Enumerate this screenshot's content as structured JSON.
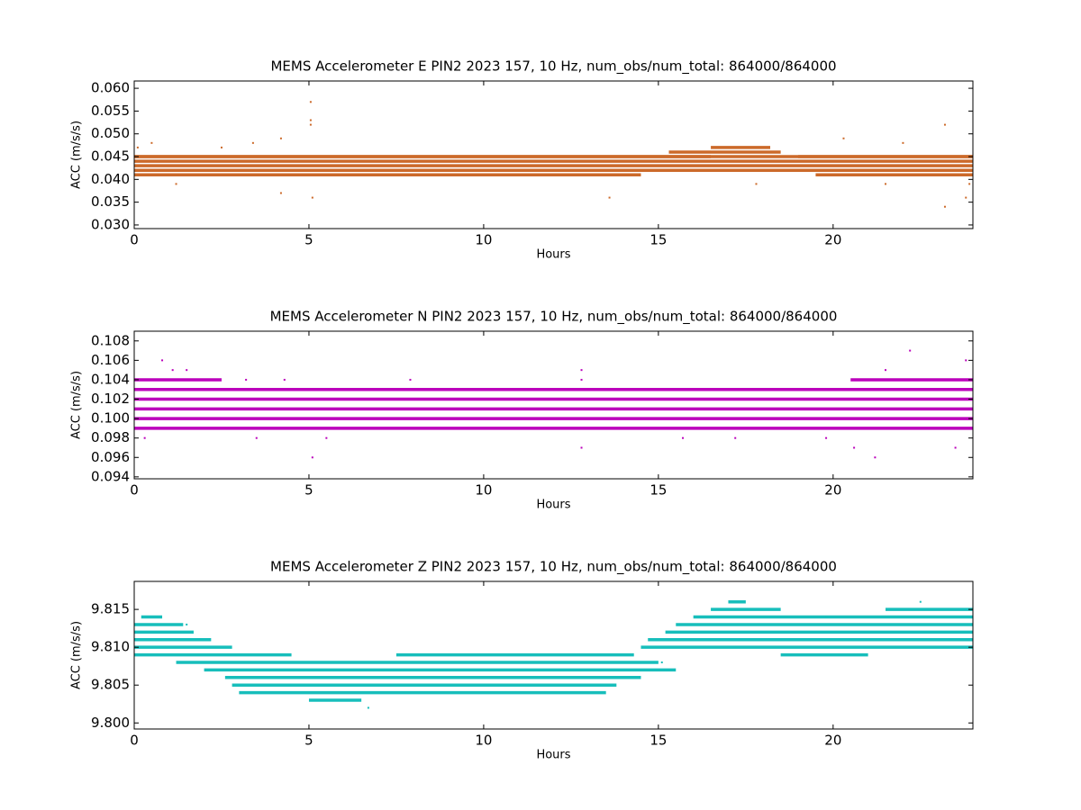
{
  "chart_data": [
    {
      "type": "scatter",
      "title": "MEMS Accelerometer E PIN2 2023 157, 10 Hz, num_obs/num_total: 864000/864000",
      "xlabel": "Hours",
      "ylabel": "ACC (m/s/s)",
      "xlim": [
        0,
        24
      ],
      "ylim": [
        0.0292,
        0.0616
      ],
      "xticks": [
        0,
        5,
        10,
        15,
        20
      ],
      "yticks": [
        {
          "value": 0.03,
          "label": "0.030"
        },
        0.035,
        {
          "value": 0.04,
          "label": "0.040"
        },
        0.045,
        {
          "value": 0.05,
          "label": "0.050"
        },
        0.055,
        {
          "value": 0.06,
          "label": "0.060"
        }
      ],
      "series": [
        {
          "color": "#cc6a2a",
          "x": [
            0,
            0,
            0,
            0,
            0,
            19,
            15.3,
            16.5,
            0,
            19.5
          ],
          "x_end": [
            24,
            24,
            24,
            24,
            16.5,
            24,
            18.5,
            18.2,
            14.5,
            24
          ],
          "values": [
            0.042,
            0.043,
            0.044,
            0.045,
            0.045,
            0.045,
            0.046,
            0.047,
            0.041,
            0.041
          ]
        },
        {
          "color": "#cc6a2a",
          "x": [
            5.05,
            5.05,
            5.05,
            4.2,
            4.2,
            5.1,
            13.6,
            23.2,
            23.2,
            22,
            3.4,
            17.8,
            0.1,
            0.5,
            2.5,
            20.3,
            21.5,
            23.8,
            1.2,
            23.9
          ],
          "values": [
            0.057,
            0.053,
            0.052,
            0.049,
            0.037,
            0.036,
            0.036,
            0.052,
            0.034,
            0.048,
            0.048,
            0.039,
            0.047,
            0.048,
            0.047,
            0.049,
            0.039,
            0.036,
            0.039,
            0.039
          ]
        }
      ]
    },
    {
      "type": "scatter",
      "title": "MEMS Accelerometer N PIN2 2023 157, 10 Hz, num_obs/num_total: 864000/864000",
      "xlabel": "Hours",
      "ylabel": "ACC (m/s/s)",
      "xlim": [
        0,
        24
      ],
      "ylim": [
        0.0938,
        0.109
      ],
      "xticks": [
        0,
        5,
        10,
        15,
        20
      ],
      "yticks": [
        0.094,
        0.096,
        0.098,
        {
          "value": 0.1,
          "label": "0.100"
        },
        0.102,
        0.104,
        0.106,
        0.108
      ],
      "series": [
        {
          "color": "#bb00bb",
          "x": [
            0,
            0,
            0,
            0,
            0,
            0,
            20.5,
            0,
            18
          ],
          "x_end": [
            24,
            24,
            24,
            24,
            24,
            2.5,
            24,
            2.5,
            24
          ],
          "values": [
            0.099,
            0.1,
            0.101,
            0.102,
            0.103,
            0.104,
            0.104,
            0.103,
            0.103
          ]
        },
        {
          "color": "#bb00bb",
          "x": [
            0.8,
            1.1,
            22.2,
            23.8,
            5.1,
            12.8,
            12.8,
            21.2,
            20.6,
            0.3,
            3.5,
            5.5,
            3.2,
            4.3,
            7.9,
            15.7,
            17.2,
            19.8,
            23.5,
            21.5,
            1.5,
            12.8
          ],
          "values": [
            0.106,
            0.105,
            0.107,
            0.106,
            0.096,
            0.105,
            0.097,
            0.096,
            0.097,
            0.098,
            0.098,
            0.098,
            0.104,
            0.104,
            0.104,
            0.098,
            0.098,
            0.098,
            0.097,
            0.105,
            0.105,
            0.104
          ]
        }
      ]
    },
    {
      "type": "scatter",
      "title": "MEMS Accelerometer Z PIN2 2023 157, 10 Hz, num_obs/num_total: 864000/864000",
      "xlabel": "Hours",
      "ylabel": "ACC (m/s/s)",
      "xlim": [
        0,
        24
      ],
      "ylim": [
        9.7992,
        9.8187
      ],
      "xticks": [
        0,
        5,
        10,
        15,
        20
      ],
      "yticks": [
        {
          "value": 9.8,
          "label": "9.800"
        },
        9.805,
        {
          "value": 9.81,
          "label": "9.810"
        },
        9.815
      ],
      "series": [
        {
          "color": "#17bebb",
          "x": [
            0.2,
            0,
            0,
            0,
            0,
            0,
            7.5,
            1.2,
            2,
            2.6,
            2.8,
            3,
            5,
            14.5,
            14.7,
            15.2,
            15.5,
            16,
            16.5,
            21.5,
            17,
            18.5
          ],
          "x_end": [
            0.8,
            1.4,
            1.7,
            2.2,
            2.8,
            4.5,
            14.3,
            15,
            15.5,
            14.5,
            13.8,
            13.5,
            6.5,
            24,
            24,
            24,
            24,
            24,
            18.5,
            24,
            17.5,
            21
          ],
          "values": [
            9.814,
            9.813,
            9.812,
            9.811,
            9.81,
            9.809,
            9.809,
            9.808,
            9.807,
            9.806,
            9.805,
            9.804,
            9.803,
            9.81,
            9.811,
            9.812,
            9.813,
            9.814,
            9.815,
            9.815,
            9.816,
            9.809
          ]
        },
        {
          "color": "#17bebb",
          "x": [
            6.7,
            22.5,
            1.5,
            15.1,
            19.8,
            20.6
          ],
          "values": [
            9.802,
            9.816,
            9.813,
            9.808,
            9.814,
            9.809
          ]
        }
      ]
    }
  ]
}
